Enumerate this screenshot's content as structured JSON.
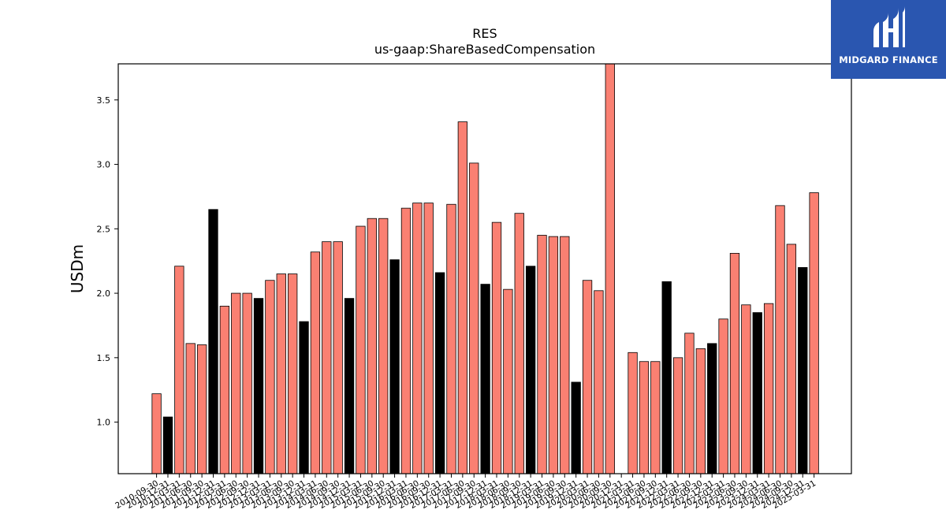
{
  "chart_data": {
    "type": "bar",
    "title": "RES",
    "subtitle": "us-gaap:ShareBasedCompensation",
    "ylabel": "USDm",
    "xlabel": "",
    "ylim": [
      0.6,
      3.78
    ],
    "yticks": [
      1.0,
      1.5,
      2.0,
      2.5,
      3.0,
      3.5
    ],
    "grid": false,
    "colors": {
      "quarter": "#fa8072",
      "fiscal_year_end": "#000000",
      "edge": "#000000"
    },
    "categories": [
      "2010-09-30",
      "2010-12-31",
      "2011-03-31",
      "2011-06-30",
      "2011-09-30",
      "2011-12-31",
      "2012-03-31",
      "2012-06-30",
      "2012-09-30",
      "2012-12-31",
      "2013-03-31",
      "2013-06-30",
      "2013-09-30",
      "2013-12-31",
      "2014-03-31",
      "2014-06-30",
      "2014-09-30",
      "2014-12-31",
      "2015-03-31",
      "2015-06-30",
      "2015-09-30",
      "2015-12-31",
      "2016-03-31",
      "2016-06-30",
      "2016-09-30",
      "2016-12-31",
      "2017-03-31",
      "2017-06-30",
      "2017-09-30",
      "2017-12-31",
      "2018-03-31",
      "2018-06-30",
      "2018-09-30",
      "2018-12-31",
      "2019-03-31",
      "2019-06-30",
      "2019-09-30",
      "2019-12-31",
      "2020-03-31",
      "2020-06-30",
      "2020-09-30",
      "2020-12-31",
      "2021-03-31",
      "2021-06-30",
      "2021-09-30",
      "2021-12-31",
      "2022-03-31",
      "2022-06-30",
      "2022-09-30",
      "2022-12-31",
      "2023-03-31",
      "2023-06-30",
      "2023-09-30",
      "2023-12-31",
      "2024-03-31",
      "2024-06-30",
      "2024-09-30",
      "2024-12-31",
      "2025-03-31"
    ],
    "values": [
      1.22,
      1.04,
      2.21,
      1.61,
      1.6,
      2.65,
      1.9,
      2.0,
      2.0,
      1.96,
      2.1,
      2.15,
      2.15,
      1.78,
      2.32,
      2.4,
      2.4,
      1.96,
      2.52,
      2.58,
      2.58,
      2.26,
      2.66,
      2.7,
      2.7,
      2.16,
      2.69,
      3.33,
      3.01,
      2.07,
      2.55,
      2.03,
      2.62,
      2.21,
      2.45,
      2.44,
      2.44,
      1.31,
      2.1,
      2.02,
      3.78,
      0.6,
      1.54,
      1.47,
      1.47,
      2.09,
      1.5,
      1.69,
      1.57,
      1.61,
      1.8,
      2.31,
      1.91,
      1.85,
      1.92,
      2.68,
      2.38,
      2.2,
      2.78
    ],
    "fiscal_year_end": [
      false,
      true,
      false,
      false,
      false,
      true,
      false,
      false,
      false,
      true,
      false,
      false,
      false,
      true,
      false,
      false,
      false,
      true,
      false,
      false,
      false,
      true,
      false,
      false,
      false,
      true,
      false,
      false,
      false,
      true,
      false,
      false,
      false,
      true,
      false,
      false,
      false,
      true,
      false,
      false,
      false,
      true,
      false,
      false,
      false,
      true,
      false,
      false,
      false,
      true,
      false,
      false,
      false,
      true,
      false,
      false,
      false,
      true,
      false
    ]
  },
  "logo": {
    "text": "MIDGARD FINANCE"
  }
}
